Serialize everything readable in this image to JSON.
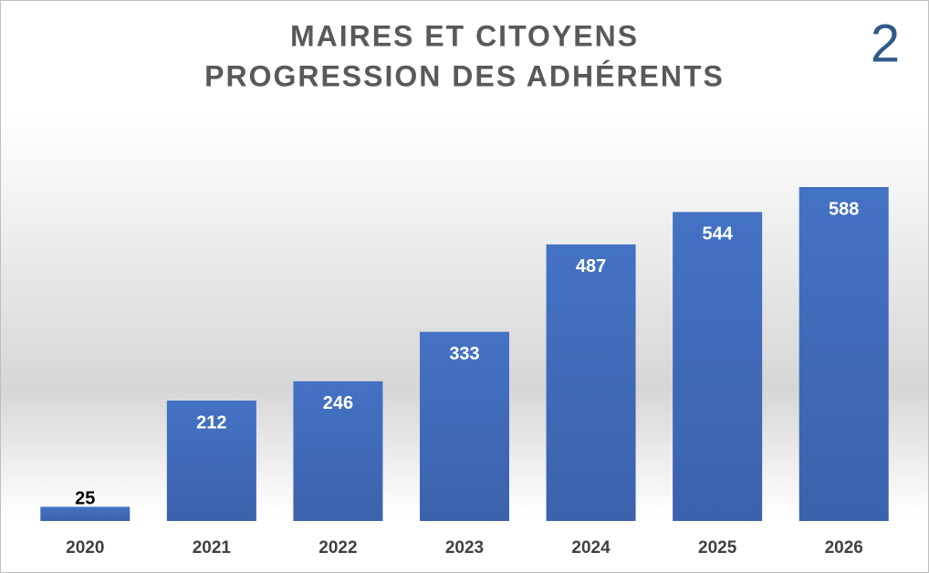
{
  "chart_data": {
    "type": "bar",
    "title": "MAIRES ET CITOYENS",
    "subtitle": "PROGRESSION DES ADHÉRENTS",
    "annotation": "2",
    "categories": [
      "2020",
      "2021",
      "2022",
      "2023",
      "2024",
      "2025",
      "2026"
    ],
    "values": [
      25,
      212,
      246,
      333,
      487,
      544,
      588
    ],
    "color": "#4472c4"
  }
}
